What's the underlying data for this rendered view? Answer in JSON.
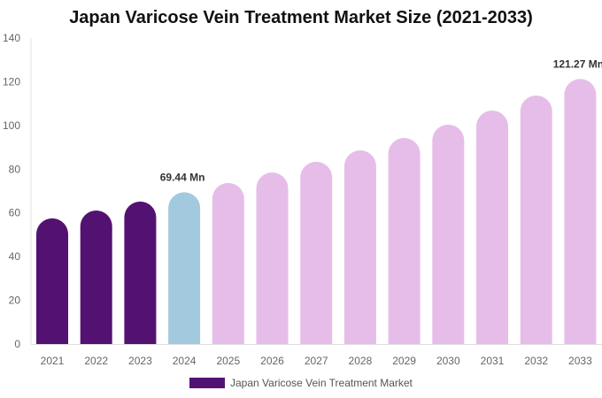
{
  "chart_data": {
    "type": "bar",
    "title": "Japan Varicose Vein Treatment Market Size (2021-2033)",
    "categories": [
      "2021",
      "2022",
      "2023",
      "2024",
      "2025",
      "2026",
      "2027",
      "2028",
      "2029",
      "2030",
      "2031",
      "2032",
      "2033"
    ],
    "series": [
      {
        "name": "Japan Varicose Vein Treatment Market",
        "values": [
          57.5,
          61.1,
          65.2,
          69.44,
          73.7,
          78.5,
          83.4,
          88.6,
          94.3,
          100.4,
          106.8,
          113.7,
          121.27
        ]
      }
    ],
    "data_labels": {
      "3": "69.44 Mn",
      "12": "121.27 Mn"
    },
    "ylim": [
      0,
      140
    ],
    "yticks": [
      0,
      20,
      40,
      60,
      80,
      100,
      120,
      140
    ],
    "grid": false,
    "legend": "bottom",
    "colors": {
      "historical": "#531271",
      "current": "#a3c9de",
      "forecast": "#e6bde8"
    },
    "color_groups": [
      "historical",
      "historical",
      "historical",
      "current",
      "forecast",
      "forecast",
      "forecast",
      "forecast",
      "forecast",
      "forecast",
      "forecast",
      "forecast",
      "forecast"
    ]
  }
}
